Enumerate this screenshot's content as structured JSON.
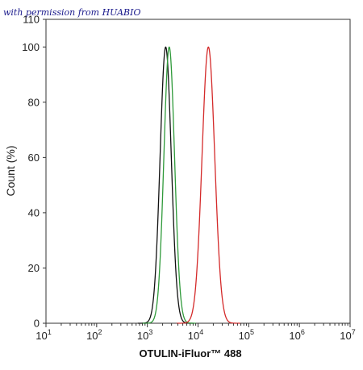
{
  "watermark": "with permission from HUABIO",
  "chart_data": {
    "type": "line",
    "title": "",
    "xlabel": "OTULIN-iFluor™ 488",
    "ylabel": "Count (%)",
    "xscale": "log",
    "xlim": [
      10,
      10000000
    ],
    "ylim": [
      0,
      110
    ],
    "x_ticks": [
      {
        "base": "10",
        "exp": "1"
      },
      {
        "base": "10",
        "exp": "2"
      },
      {
        "base": "10",
        "exp": "3"
      },
      {
        "base": "10",
        "exp": "4"
      },
      {
        "base": "10",
        "exp": "5"
      },
      {
        "base": "10",
        "exp": "6"
      },
      {
        "base": "10",
        "exp": "7"
      }
    ],
    "y_ticks": [
      "0",
      "20",
      "40",
      "60",
      "80",
      "100",
      "110"
    ],
    "series": [
      {
        "color": "#111111",
        "peak_x": 2300,
        "sigma_log": 0.11,
        "peak_y": 100
      },
      {
        "color": "#2f9a3a",
        "peak_x": 2700,
        "sigma_log": 0.105,
        "peak_y": 100
      },
      {
        "color": "#d42a2a",
        "peak_x": 16000,
        "sigma_log": 0.125,
        "peak_y": 100
      }
    ],
    "grid": false,
    "legend": "none"
  }
}
